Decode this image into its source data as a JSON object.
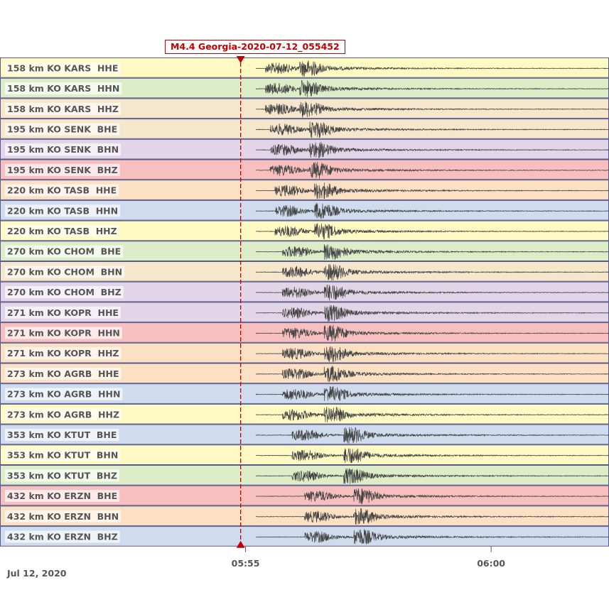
{
  "event": {
    "label": "M4.4 Georgia-2020-07-12_055452",
    "color": "#c40000"
  },
  "date_label": "Jul 12, 2020",
  "chart_data": {
    "type": "line",
    "title": "M4.4 Georgia-2020-07-12_055452",
    "xlabel": "",
    "x_unit": "minutes since 05:50 UTC",
    "xlim": [
      0,
      12.4
    ],
    "event_origin": 4.9,
    "x_ticks": [
      {
        "value": 5,
        "label": "05:55"
      },
      {
        "value": 10,
        "label": "06:00"
      }
    ],
    "series": [
      {
        "name": "158 km KO KARS  HHE",
        "distance_km": 158,
        "network": "KO",
        "station": "KARS",
        "channel": "HHE",
        "p_arrival": 5.4,
        "s_arrival": 6.1,
        "bg": "#fff9c4"
      },
      {
        "name": "158 km KO KARS  HHN",
        "distance_km": 158,
        "network": "KO",
        "station": "KARS",
        "channel": "HHN",
        "p_arrival": 5.4,
        "s_arrival": 6.1,
        "bg": "#dcedc8"
      },
      {
        "name": "158 km KO KARS  HHZ",
        "distance_km": 158,
        "network": "KO",
        "station": "KARS",
        "channel": "HHZ",
        "p_arrival": 5.4,
        "s_arrival": 6.1,
        "bg": "#f5e6cc"
      },
      {
        "name": "195 km KO SENK  BHE",
        "distance_km": 195,
        "network": "KO",
        "station": "SENK",
        "channel": "BHE",
        "p_arrival": 5.5,
        "s_arrival": 6.3,
        "bg": "#f5e6cc"
      },
      {
        "name": "195 km KO SENK  BHN",
        "distance_km": 195,
        "network": "KO",
        "station": "SENK",
        "channel": "BHN",
        "p_arrival": 5.5,
        "s_arrival": 6.3,
        "bg": "#e1d5e7"
      },
      {
        "name": "195 km KO SENK  BHZ",
        "distance_km": 195,
        "network": "KO",
        "station": "SENK",
        "channel": "BHZ",
        "p_arrival": 5.5,
        "s_arrival": 6.3,
        "bg": "#f8bfbf"
      },
      {
        "name": "220 km KO TASB  HHE",
        "distance_km": 220,
        "network": "KO",
        "station": "TASB",
        "channel": "HHE",
        "p_arrival": 5.6,
        "s_arrival": 6.4,
        "bg": "#fbe0c4"
      },
      {
        "name": "220 km KO TASB  HHN",
        "distance_km": 220,
        "network": "KO",
        "station": "TASB",
        "channel": "HHN",
        "p_arrival": 5.6,
        "s_arrival": 6.4,
        "bg": "#cfdcee"
      },
      {
        "name": "220 km KO TASB  HHZ",
        "distance_km": 220,
        "network": "KO",
        "station": "TASB",
        "channel": "HHZ",
        "p_arrival": 5.6,
        "s_arrival": 6.4,
        "bg": "#fff9c4"
      },
      {
        "name": "270 km KO CHOM  BHE",
        "distance_km": 270,
        "network": "KO",
        "station": "CHOM",
        "channel": "BHE",
        "p_arrival": 5.75,
        "s_arrival": 6.6,
        "bg": "#dcedc8"
      },
      {
        "name": "270 km KO CHOM  BHN",
        "distance_km": 270,
        "network": "KO",
        "station": "CHOM",
        "channel": "BHN",
        "p_arrival": 5.75,
        "s_arrival": 6.6,
        "bg": "#f5e6cc"
      },
      {
        "name": "270 km KO CHOM  BHZ",
        "distance_km": 270,
        "network": "KO",
        "station": "CHOM",
        "channel": "BHZ",
        "p_arrival": 5.75,
        "s_arrival": 6.6,
        "bg": "#e1d5e7"
      },
      {
        "name": "271 km KO KOPR  HHE",
        "distance_km": 271,
        "network": "KO",
        "station": "KOPR",
        "channel": "HHE",
        "p_arrival": 5.75,
        "s_arrival": 6.6,
        "bg": "#e1d5e7"
      },
      {
        "name": "271 km KO KOPR  HHN",
        "distance_km": 271,
        "network": "KO",
        "station": "KOPR",
        "channel": "HHN",
        "p_arrival": 5.75,
        "s_arrival": 6.6,
        "bg": "#f8bfbf"
      },
      {
        "name": "271 km KO KOPR  HHZ",
        "distance_km": 271,
        "network": "KO",
        "station": "KOPR",
        "channel": "HHZ",
        "p_arrival": 5.75,
        "s_arrival": 6.6,
        "bg": "#fbe0c4"
      },
      {
        "name": "273 km KO AGRB  HHE",
        "distance_km": 273,
        "network": "KO",
        "station": "AGRB",
        "channel": "HHE",
        "p_arrival": 5.75,
        "s_arrival": 6.6,
        "bg": "#fbe0c4"
      },
      {
        "name": "273 km KO AGRB  HHN",
        "distance_km": 273,
        "network": "KO",
        "station": "AGRB",
        "channel": "HHN",
        "p_arrival": 5.75,
        "s_arrival": 6.6,
        "bg": "#cfdcee"
      },
      {
        "name": "273 km KO AGRB  HHZ",
        "distance_km": 273,
        "network": "KO",
        "station": "AGRB",
        "channel": "HHZ",
        "p_arrival": 5.75,
        "s_arrival": 6.6,
        "bg": "#fff9c4"
      },
      {
        "name": "353 km KO KTUT  BHE",
        "distance_km": 353,
        "network": "KO",
        "station": "KTUT",
        "channel": "BHE",
        "p_arrival": 5.95,
        "s_arrival": 7.0,
        "bg": "#cfdcee"
      },
      {
        "name": "353 km KO KTUT  BHN",
        "distance_km": 353,
        "network": "KO",
        "station": "KTUT",
        "channel": "BHN",
        "p_arrival": 5.95,
        "s_arrival": 7.0,
        "bg": "#fff9c4"
      },
      {
        "name": "353 km KO KTUT  BHZ",
        "distance_km": 353,
        "network": "KO",
        "station": "KTUT",
        "channel": "BHZ",
        "p_arrival": 5.95,
        "s_arrival": 7.0,
        "bg": "#dcedc8"
      },
      {
        "name": "432 km KO ERZN  BHE",
        "distance_km": 432,
        "network": "KO",
        "station": "ERZN",
        "channel": "BHE",
        "p_arrival": 6.2,
        "s_arrival": 7.2,
        "bg": "#f8bfbf"
      },
      {
        "name": "432 km KO ERZN  BHN",
        "distance_km": 432,
        "network": "KO",
        "station": "ERZN",
        "channel": "BHN",
        "p_arrival": 6.2,
        "s_arrival": 7.2,
        "bg": "#fbe0c4"
      },
      {
        "name": "432 km KO ERZN  BHZ",
        "distance_km": 432,
        "network": "KO",
        "station": "ERZN",
        "channel": "BHZ",
        "p_arrival": 6.2,
        "s_arrival": 7.2,
        "bg": "#cfdcee"
      }
    ]
  }
}
